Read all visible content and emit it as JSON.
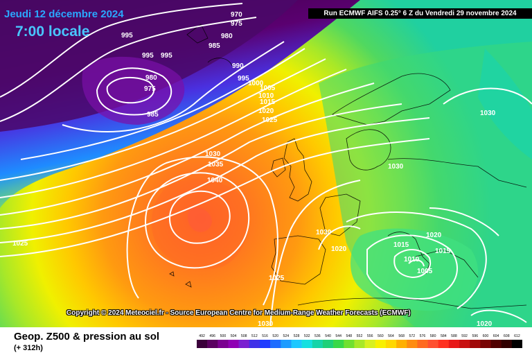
{
  "header": {
    "date": "Jeudi 12 décembre 2024",
    "time": "7:00 locale",
    "run": "Run ECMWF AIFS 0.25° 6 Z du Vendredi 29 novembre 2024"
  },
  "copyright": "Copyright © 2024 Meteociel.fr - Source European Centre for Medium-Range Weather Forecasts (ECMWF)",
  "footer": {
    "title": "Geop. Z500 & pression au sol",
    "subtitle": "(+ 312h)"
  },
  "scale": {
    "ticks": [
      "492",
      "496",
      "500",
      "504",
      "508",
      "512",
      "516",
      "520",
      "524",
      "528",
      "532",
      "536",
      "540",
      "544",
      "548",
      "552",
      "556",
      "560",
      "564",
      "568",
      "572",
      "576",
      "580",
      "584",
      "588",
      "592",
      "596",
      "600",
      "604",
      "608",
      "612"
    ],
    "colors": [
      "#3a003a",
      "#5a0060",
      "#7a0090",
      "#8f00b4",
      "#7a20d0",
      "#4030e8",
      "#1f3cff",
      "#1e6cff",
      "#1e9cff",
      "#1ec8ff",
      "#16e0e0",
      "#16d4a8",
      "#1ed078",
      "#38d848",
      "#70e030",
      "#a8e828",
      "#d8f020",
      "#f8f000",
      "#ffd800",
      "#ffb000",
      "#ff8c10",
      "#ff6a20",
      "#ff5030",
      "#ff3020",
      "#e81818",
      "#c81010",
      "#a00808",
      "#780404",
      "#500000",
      "#300000",
      "#000000"
    ]
  },
  "isobars": [
    {
      "value": "970"
    },
    {
      "value": "975"
    },
    {
      "value": "980"
    },
    {
      "value": "985"
    },
    {
      "value": "995"
    },
    {
      "value": "995"
    },
    {
      "value": "995"
    },
    {
      "value": "980"
    },
    {
      "value": "975"
    },
    {
      "value": "985"
    },
    {
      "value": "990"
    },
    {
      "value": "995"
    },
    {
      "value": "1000"
    },
    {
      "value": "1005"
    },
    {
      "value": "1010"
    },
    {
      "value": "1015"
    },
    {
      "value": "1020"
    },
    {
      "value": "1025"
    },
    {
      "value": "1030"
    },
    {
      "value": "1035"
    },
    {
      "value": "1040"
    },
    {
      "value": "1030"
    },
    {
      "value": "1030"
    },
    {
      "value": "1025"
    },
    {
      "value": "1030"
    },
    {
      "value": "1020"
    },
    {
      "value": "1015"
    },
    {
      "value": "1020"
    },
    {
      "value": "1015"
    },
    {
      "value": "1010"
    },
    {
      "value": "1005"
    },
    {
      "value": "1025"
    },
    {
      "value": "1020"
    },
    {
      "value": "1030"
    }
  ]
}
